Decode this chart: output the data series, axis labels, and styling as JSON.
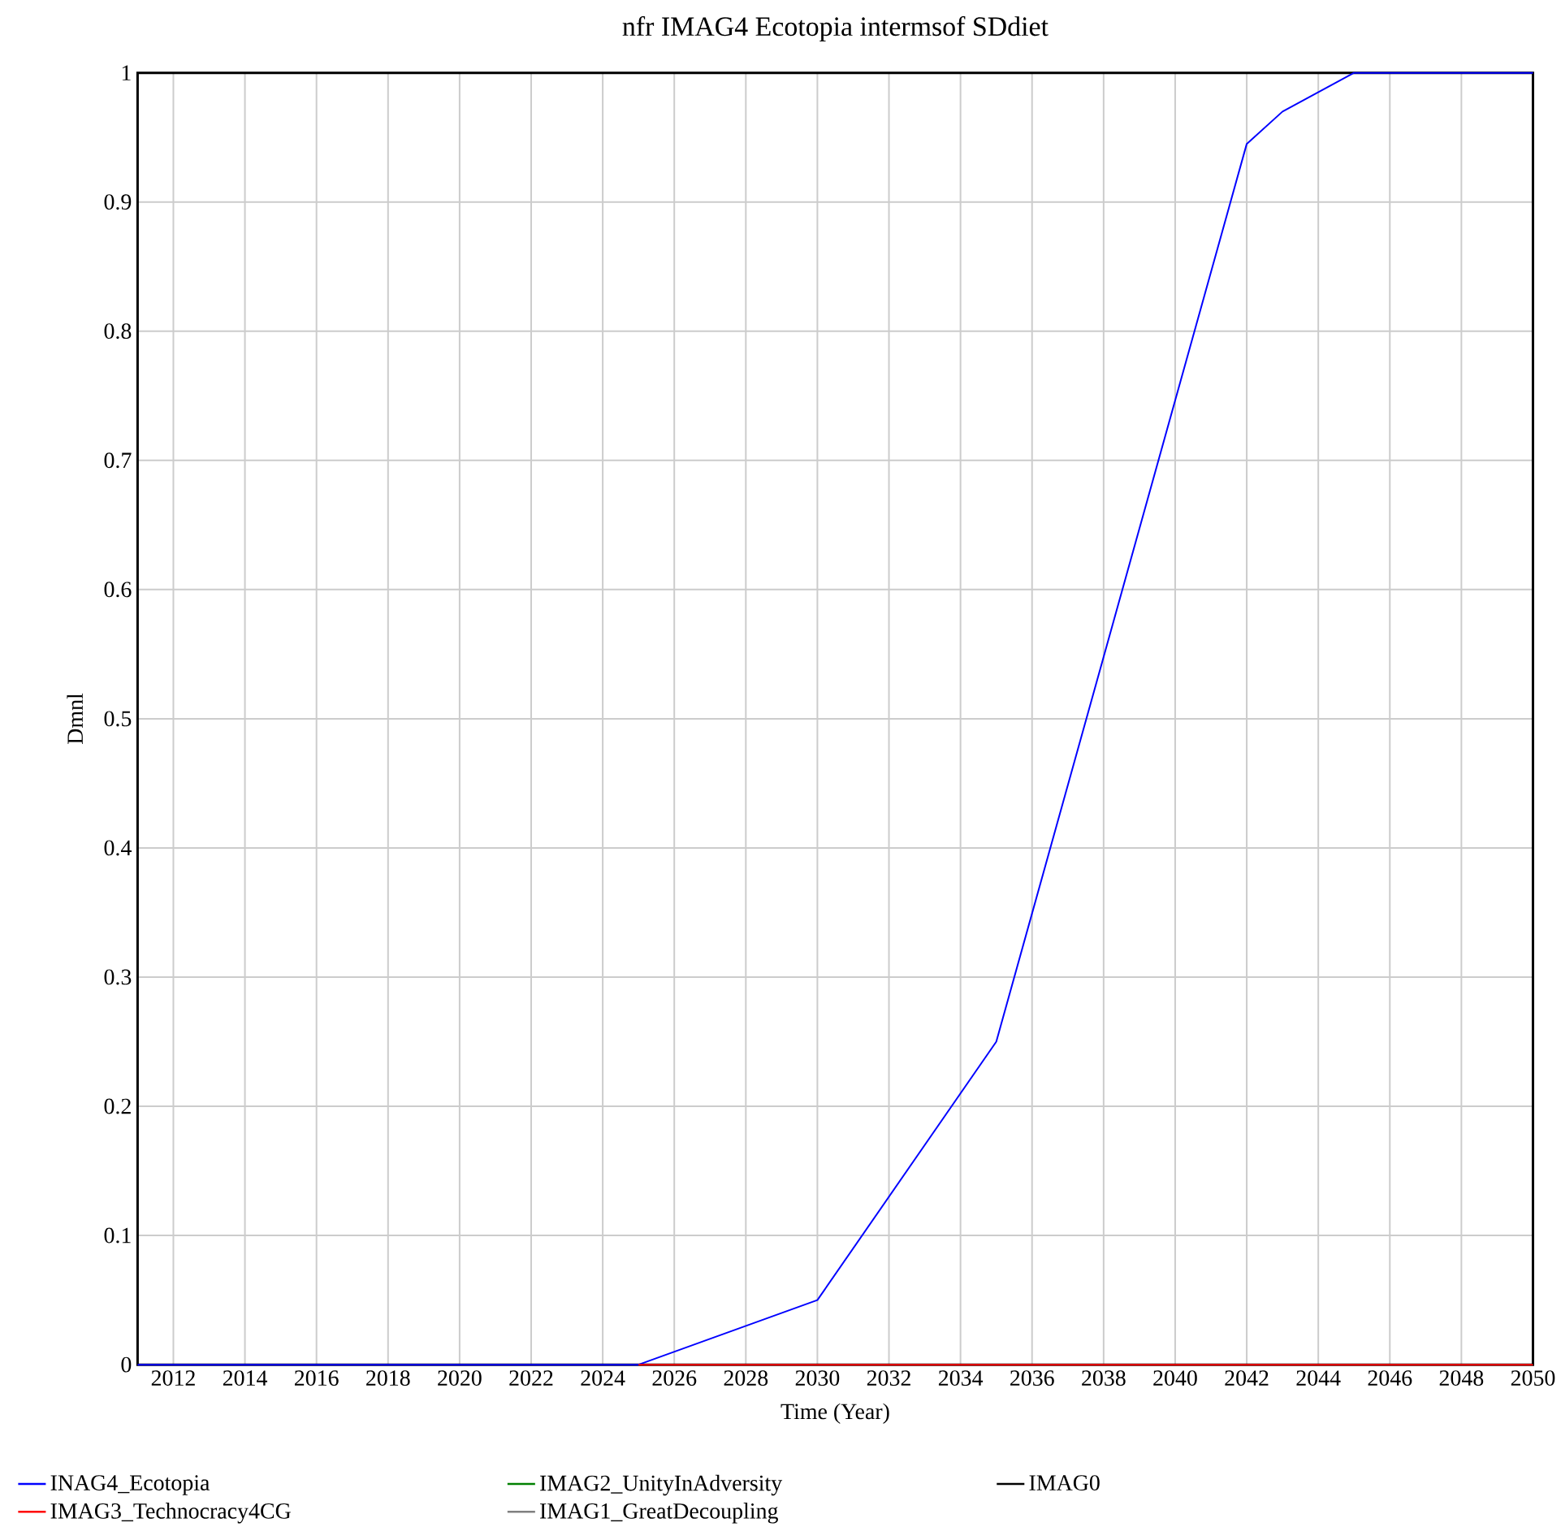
{
  "chart_data": {
    "type": "line",
    "title": "nfr IMAG4 Ecotopia intermsof SDdiet",
    "xlabel": "Time (Year)",
    "ylabel": "Dmnl",
    "xlim": [
      2011,
      2050
    ],
    "ylim": [
      0,
      1
    ],
    "xticks": [
      2012,
      2014,
      2016,
      2018,
      2020,
      2022,
      2024,
      2026,
      2028,
      2030,
      2032,
      2034,
      2036,
      2038,
      2040,
      2042,
      2044,
      2046,
      2048,
      2050
    ],
    "yticks": [
      0,
      0.1,
      0.2,
      0.3,
      0.4,
      0.5,
      0.6,
      0.7,
      0.8,
      0.9,
      1
    ],
    "grid": true,
    "legend": "bottom",
    "line_style": "solid",
    "series": [
      {
        "name": "INAG4_Ecotopia",
        "color": "#0000ff",
        "x": [
          2011,
          2025,
          2030,
          2035,
          2042,
          2043,
          2045,
          2050
        ],
        "values": [
          0,
          0,
          0.05,
          0.25,
          0.945,
          0.97,
          1,
          1
        ]
      },
      {
        "name": "IMAG2_UnityInAdversity",
        "color": "#008000"
      },
      {
        "name": "IMAG0",
        "color": "#000000"
      },
      {
        "name": "IMAG3_Technocracy4CG",
        "color": "#ff0000",
        "x": [
          2025,
          2050
        ],
        "values": [
          0,
          0
        ]
      },
      {
        "name": "IMAG1_GreatDecoupling",
        "color": "#808080"
      }
    ]
  }
}
